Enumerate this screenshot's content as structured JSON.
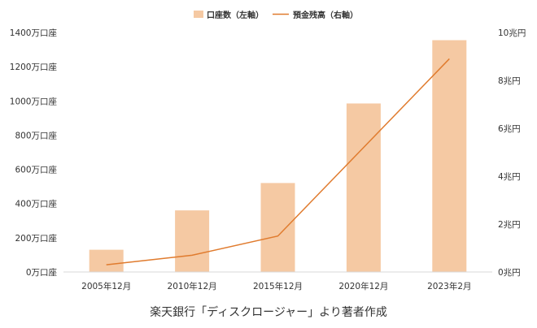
{
  "chart_data": {
    "type": "bar",
    "categories": [
      "2005年12月",
      "2010年12月",
      "2015年12月",
      "2020年12月",
      "2023年2月"
    ],
    "series": [
      {
        "name": "口座数（左軸）",
        "type": "bar",
        "axis": "left",
        "color": "#f5c9a3",
        "values": [
          130,
          360,
          520,
          985,
          1355
        ]
      },
      {
        "name": "預金残高（右軸）",
        "type": "line",
        "axis": "right",
        "color": "#e07b2e",
        "values": [
          0.3,
          0.7,
          1.5,
          5.2,
          8.9
        ]
      }
    ],
    "left_axis": {
      "min": 0,
      "max": 1400,
      "ticks": [
        {
          "value": 0,
          "label": "0万口座"
        },
        {
          "value": 200,
          "label": "200万口座"
        },
        {
          "value": 400,
          "label": "400万口座"
        },
        {
          "value": 600,
          "label": "600万口座"
        },
        {
          "value": 800,
          "label": "800万口座"
        },
        {
          "value": 1000,
          "label": "1000万口座"
        },
        {
          "value": 1200,
          "label": "1200万口座"
        },
        {
          "value": 1400,
          "label": "1400万口座"
        }
      ]
    },
    "right_axis": {
      "min": 0,
      "max": 10,
      "ticks": [
        {
          "value": 0,
          "label": "0兆円"
        },
        {
          "value": 2,
          "label": "2兆円"
        },
        {
          "value": 4,
          "label": "4兆円"
        },
        {
          "value": 6,
          "label": "6兆円"
        },
        {
          "value": 8,
          "label": "8兆円"
        },
        {
          "value": 10,
          "label": "10兆円"
        }
      ]
    },
    "grid": false,
    "legend_position": "top-center",
    "caption": "楽天銀行「ディスクロージャー」より著者作成"
  }
}
